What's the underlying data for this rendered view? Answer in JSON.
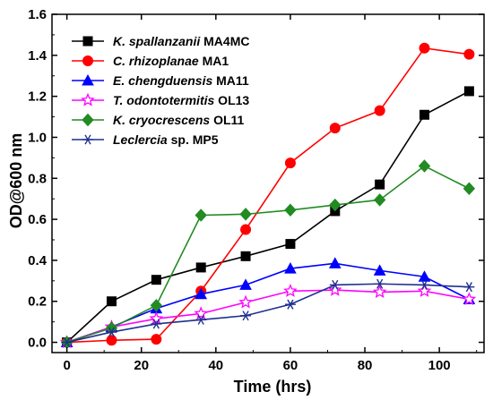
{
  "chart_data": {
    "type": "line",
    "xlabel": "Time (hrs)",
    "ylabel": "OD@600 nm",
    "xlim": [
      -4,
      112
    ],
    "ylim": [
      -0.05,
      1.6
    ],
    "xticks": [
      0,
      20,
      40,
      60,
      80,
      100
    ],
    "yticks": [
      0.0,
      0.2,
      0.4,
      0.6,
      0.8,
      1.0,
      1.2,
      1.4,
      1.6
    ],
    "ytick_labels": [
      "0.0",
      "0.2",
      "0.4",
      "0.6",
      "0.8",
      "1.0",
      "1.2",
      "1.4",
      "1.6"
    ],
    "grid": false,
    "legend_position": "top-left",
    "series": [
      {
        "italic": "K. spallanzanii",
        "suffix": " MA4MC",
        "color": "#000000",
        "marker": "square",
        "x": [
          0,
          12,
          24,
          36,
          48,
          60,
          72,
          84,
          96,
          108
        ],
        "y": [
          0.0,
          0.2,
          0.305,
          0.365,
          0.42,
          0.48,
          0.64,
          0.77,
          1.11,
          1.225
        ]
      },
      {
        "italic": "C. rhizoplanae",
        "suffix": " MA1",
        "color": "#ff0000",
        "marker": "circle",
        "x": [
          0,
          12,
          24,
          36,
          48,
          60,
          72,
          84,
          96,
          108
        ],
        "y": [
          0.0,
          0.01,
          0.015,
          0.25,
          0.55,
          0.875,
          1.045,
          1.13,
          1.435,
          1.405
        ]
      },
      {
        "italic": "E. chengduensis",
        "suffix": " MA11",
        "color": "#0000ff",
        "marker": "triangle",
        "x": [
          0,
          12,
          24,
          36,
          48,
          60,
          72,
          84,
          96,
          108
        ],
        "y": [
          0.0,
          0.075,
          0.165,
          0.235,
          0.28,
          0.36,
          0.385,
          0.35,
          0.32,
          0.21
        ]
      },
      {
        "italic": "T. odontotermitis",
        "suffix": " OL13",
        "color": "#ff00ff",
        "marker": "star",
        "x": [
          0,
          12,
          24,
          36,
          48,
          60,
          72,
          84,
          96,
          108
        ],
        "y": [
          0.0,
          0.075,
          0.115,
          0.14,
          0.195,
          0.25,
          0.255,
          0.245,
          0.25,
          0.21
        ]
      },
      {
        "italic": "K. cryocrescens",
        "suffix": " OL11",
        "color": "#228b22",
        "marker": "diamond",
        "x": [
          0,
          12,
          24,
          36,
          48,
          60,
          72,
          84,
          96,
          108
        ],
        "y": [
          0.0,
          0.07,
          0.18,
          0.62,
          0.625,
          0.645,
          0.67,
          0.695,
          0.86,
          0.75
        ]
      },
      {
        "italic": "Leclercia",
        "suffix": " sp. MP5",
        "color": "#1f2f8f",
        "marker": "asterisk",
        "x": [
          0,
          12,
          24,
          36,
          48,
          60,
          72,
          84,
          96,
          108
        ],
        "y": [
          0.0,
          0.05,
          0.09,
          0.11,
          0.13,
          0.185,
          0.28,
          0.285,
          0.28,
          0.27
        ]
      }
    ]
  }
}
